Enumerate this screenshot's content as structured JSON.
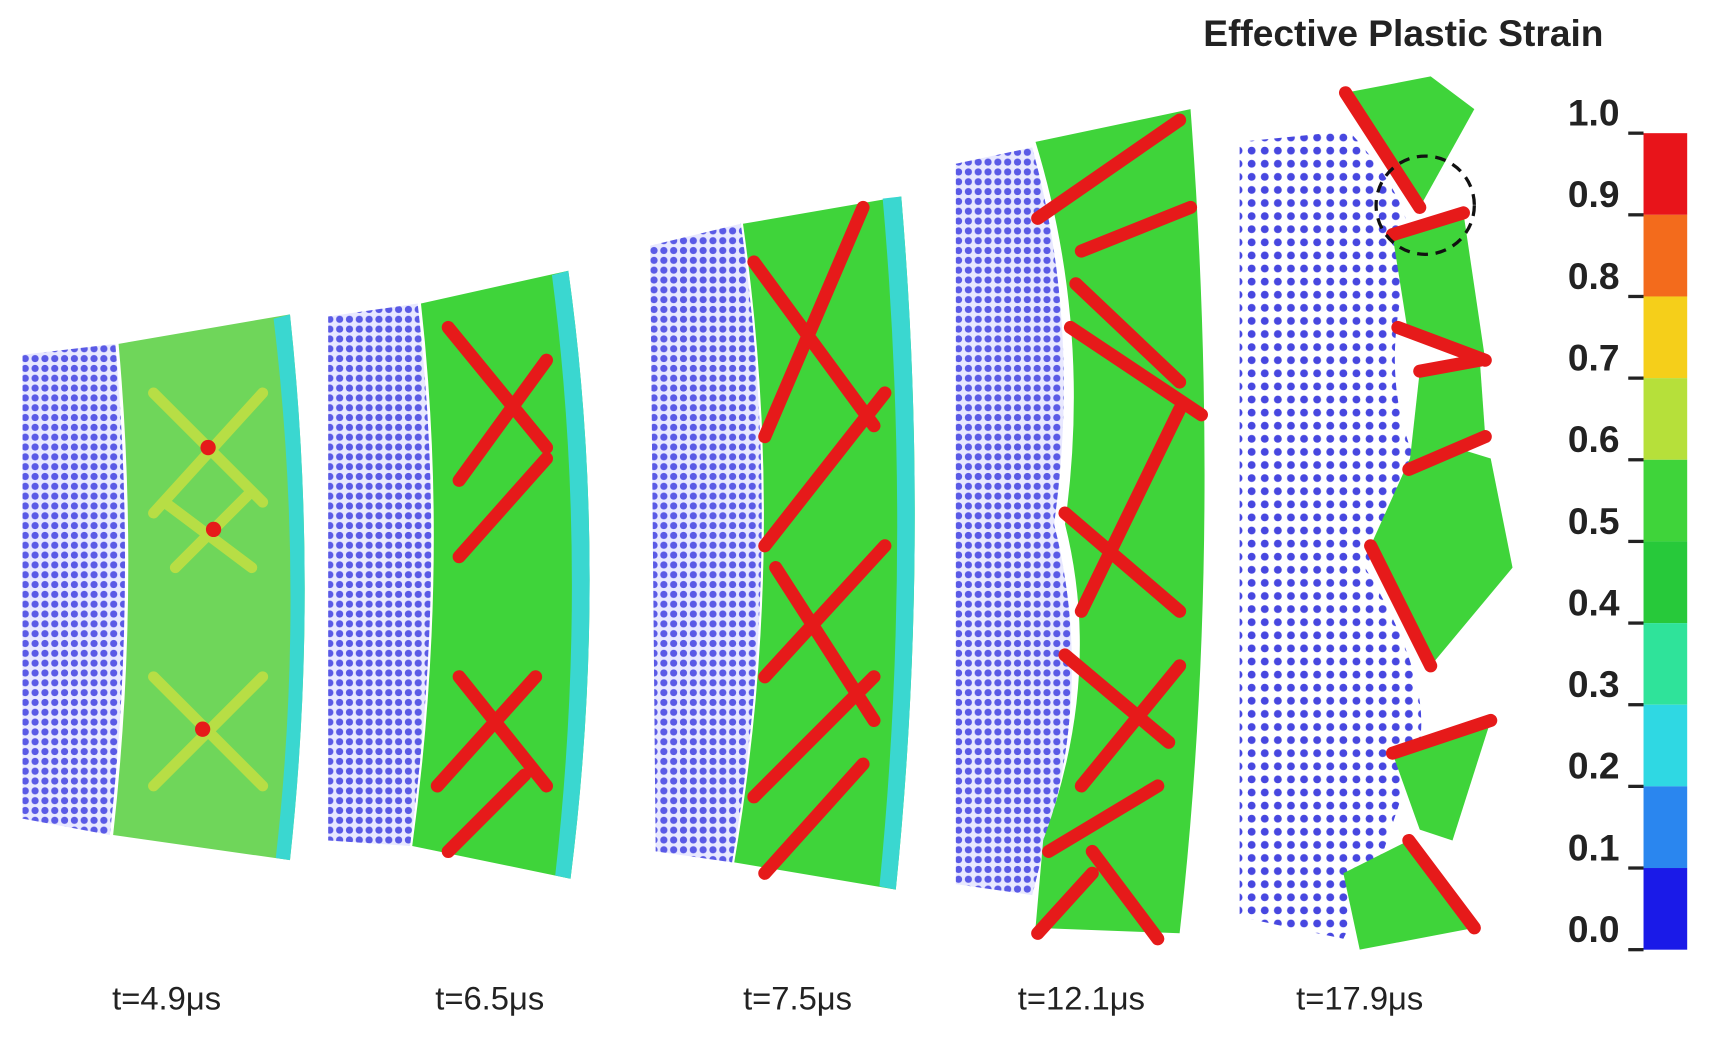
{
  "title": "Effective Plastic Strain",
  "colorbar": {
    "ticks": [
      {
        "value": 1,
        "label": "1.0"
      },
      0.9,
      0.8,
      0.7,
      0.6,
      0.5,
      0.4,
      0.3,
      0.2,
      0.1,
      {
        "value": 0,
        "label": "0.0"
      }
    ],
    "colors": [
      "#e8141a",
      "#f36b1c",
      "#f5cf1a",
      "#b6e03a",
      "#3fd43a",
      "#27c93a",
      "#2fe39a",
      "#2fd8e3",
      "#2a86ef",
      "#1a1ae8"
    ]
  },
  "panels": [
    {
      "label": "t=4.9μs"
    },
    {
      "label": "t=6.5μs"
    },
    {
      "label": "t=7.5μs"
    },
    {
      "label": "t=12.1μs"
    },
    {
      "label": "t=17.9μs"
    }
  ]
}
